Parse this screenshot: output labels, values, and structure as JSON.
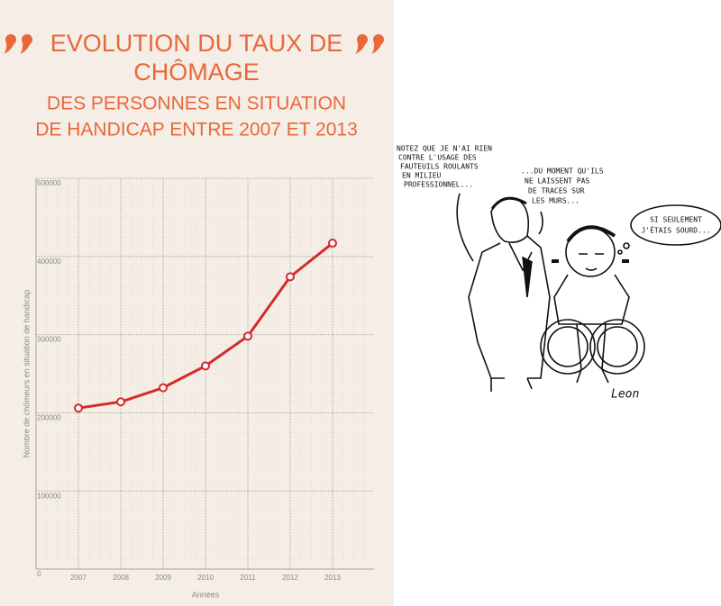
{
  "chart_data": {
    "type": "line",
    "title": [
      "EVOLUTION DU TAUX DE",
      "CHÔMAGE"
    ],
    "subtitle": [
      "DES PERSONNES EN SITUATION",
      "DE HANDICAP ENTRE 2007 ET 2013"
    ],
    "x_label": "Années",
    "y_label": "Nombre de chômeurs en situation de handicap",
    "categories": [
      "2007",
      "2008",
      "2009",
      "2010",
      "2011",
      "2012",
      "2013"
    ],
    "values": [
      206000,
      214000,
      232000,
      260000,
      298000,
      374000,
      417000
    ],
    "color": "#d42a2a",
    "ylim": [
      0,
      500000
    ],
    "yticks": [
      0,
      100000,
      200000,
      300000,
      400000,
      500000
    ],
    "grid": true
  },
  "cartoon": {
    "captions": [
      "NOTEZ QUE JE N'AI RIEN",
      "CONTRE L'USAGE DES",
      "FAUTEUILS ROULANTS",
      "EN MILIEU",
      "PROFESSIONNEL..."
    ],
    "captions_2": [
      "...DU MOMENT QU'ILS",
      "NE LAISSENT PAS",
      "DE TRACES SUR",
      "LES MURS..."
    ],
    "bubble": [
      "SI SEULEMENT",
      "J'ÉTAIS SOURD..."
    ],
    "signature": "Leon"
  }
}
